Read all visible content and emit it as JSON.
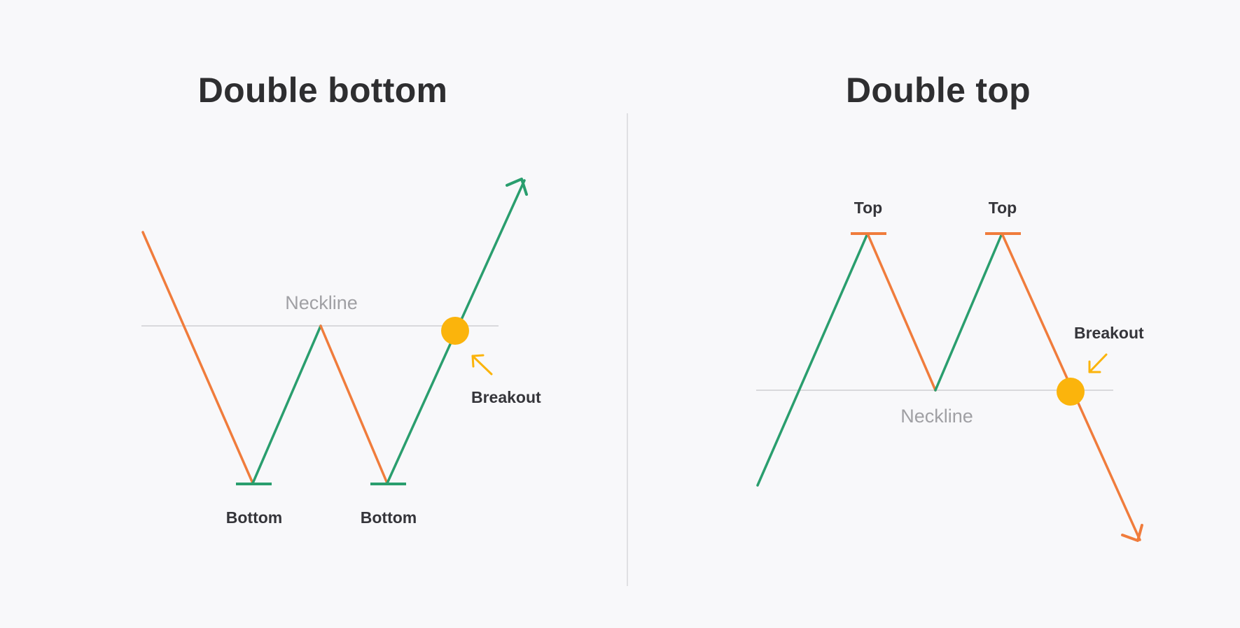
{
  "double_bottom": {
    "title": "Double bottom",
    "neckline_label": "Neckline",
    "bottom_labels": [
      "Bottom",
      "Bottom"
    ],
    "breakout_label": "Breakout"
  },
  "double_top": {
    "title": "Double top",
    "neckline_label": "Neckline",
    "top_labels": [
      "Top",
      "Top"
    ],
    "breakout_label": "Breakout"
  },
  "colors": {
    "up_move": "#2a9e6e",
    "down_move": "#f07c3c",
    "breakout_marker": "#fbb40c",
    "neckline": "#d9d9dc",
    "divider": "#e0e0e3",
    "title_text": "#2e2e30",
    "label_text": "#35353a",
    "neckline_text": "#a0a0a4"
  }
}
